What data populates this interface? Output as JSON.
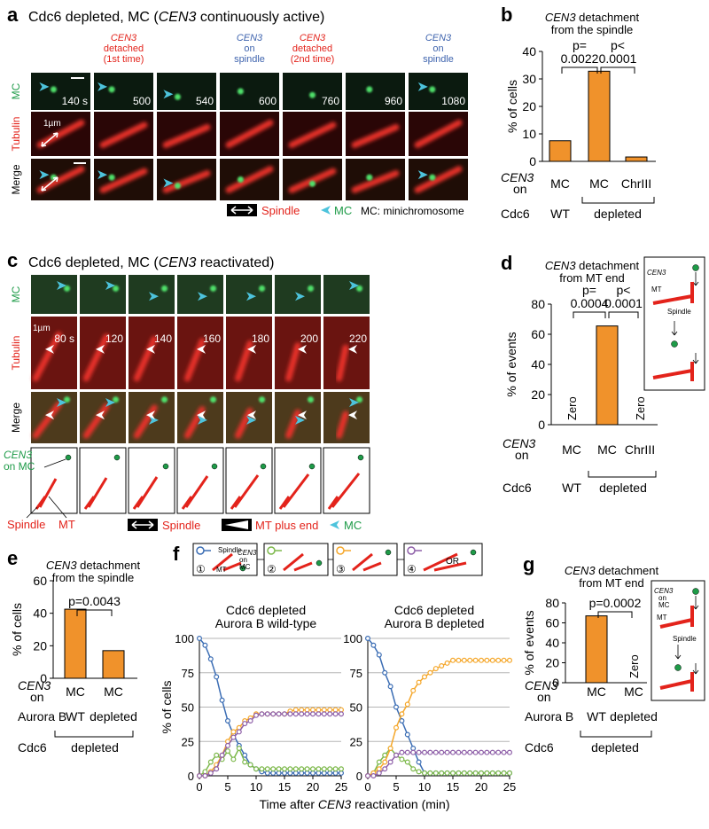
{
  "panel_a": {
    "letter": "a",
    "title": [
      "Cdc6 depleted, MC (",
      "CEN3",
      " continuously active)"
    ],
    "annotations": [
      {
        "lines": [
          "CEN3",
          "detached",
          "(1st time)"
        ],
        "color": "#e3231b"
      },
      {
        "lines": [
          "CEN3",
          "on",
          "spindle"
        ],
        "color": "#3f64ae"
      },
      {
        "lines": [
          "CEN3",
          "detached",
          "(2nd time)"
        ],
        "color": "#e3231b"
      },
      {
        "lines": [
          "CEN3",
          "on",
          "spindle"
        ],
        "color": "#3f64ae"
      }
    ],
    "rows": [
      "MC",
      "Tubulin",
      "Merge"
    ],
    "times": [
      "140 s",
      "500",
      "540",
      "600",
      "760",
      "960",
      "1080"
    ],
    "scale": "1µm",
    "legend": [
      "Spindle",
      "MC",
      "MC: minichromosome"
    ]
  },
  "panel_c": {
    "letter": "c",
    "title": [
      "Cdc6 depleted, MC (",
      "CEN3",
      " reactivated)"
    ],
    "rows": [
      "MC",
      "Tubulin",
      "Merge"
    ],
    "times": [
      "80 s",
      "120",
      "140",
      "160",
      "180",
      "200",
      "220"
    ],
    "scale": "1µm",
    "schematic_labels": [
      "CEN3",
      "on MC",
      "Spindle",
      "MT"
    ],
    "legend": [
      "Spindle",
      "MT plus end",
      "MC"
    ]
  },
  "panel_f": {
    "letter": "f",
    "schematic_labels": [
      "Spindle",
      "MT",
      "CEN3",
      "on",
      "MC",
      "OR"
    ],
    "xlabel": [
      "Time after ",
      "CEN3",
      " reactivation (min)"
    ]
  },
  "chart_data": [
    {
      "type": "bar",
      "letter": "b",
      "title": [
        "CEN3",
        " detachment",
        "from the spindle"
      ],
      "ylabel": "% of cells",
      "categories": [
        "MC",
        "MC",
        "ChrIII"
      ],
      "values": [
        7.5,
        32.8,
        1.6
      ],
      "color": "#f0922b",
      "ylim": [
        0,
        40
      ],
      "yticks": [
        0,
        10,
        20,
        30,
        40
      ],
      "pvalues": [
        [
          "p=",
          "0.0022"
        ],
        [
          "p<",
          "0.0001"
        ]
      ],
      "rows": [
        {
          "label": [
            "CEN3",
            "on"
          ]
        },
        {
          "label": [
            "Cdc6"
          ],
          "groups": [
            "WT",
            "depleted"
          ]
        }
      ]
    },
    {
      "type": "bar",
      "letter": "d",
      "title": [
        "CEN3",
        " detachment",
        "from MT end"
      ],
      "ylabel": "% of events",
      "categories": [
        "MC",
        "MC",
        "ChrIII"
      ],
      "values": [
        0,
        65.5,
        0
      ],
      "value_labels": [
        "Zero",
        null,
        "Zero"
      ],
      "color": "#f0922b",
      "ylim": [
        0,
        80
      ],
      "yticks": [
        0,
        20,
        40,
        60,
        80
      ],
      "pvalues": [
        [
          "p=",
          "0.0004"
        ],
        [
          "p<",
          "0.0001"
        ]
      ],
      "rows": [
        {
          "label": [
            "CEN3",
            "on"
          ]
        },
        {
          "label": [
            "Cdc6"
          ],
          "groups": [
            "WT",
            "depleted"
          ]
        }
      ],
      "inset_labels": [
        "CEN3",
        "MT",
        "Spindle"
      ]
    },
    {
      "type": "bar",
      "letter": "e",
      "title": [
        "CEN3",
        " detachment",
        "from the spindle"
      ],
      "ylabel": "% of cells",
      "categories": [
        "MC",
        "MC"
      ],
      "values": [
        42.5,
        17
      ],
      "color": "#f0922b",
      "ylim": [
        0,
        60
      ],
      "yticks": [
        0,
        20,
        40,
        60
      ],
      "pvalues": [
        [
          "p=0.0043"
        ]
      ],
      "rows": [
        {
          "label": [
            "CEN3",
            "on"
          ]
        },
        {
          "label": [
            "Aurora B"
          ],
          "groups": [
            "WT",
            "depleted"
          ]
        },
        {
          "label": [
            "Cdc6"
          ],
          "groups": [
            "depleted"
          ]
        }
      ]
    },
    {
      "type": "bar",
      "letter": "g",
      "title": [
        "CEN3",
        " detachment",
        "from MT end"
      ],
      "ylabel": "% of events",
      "categories": [
        "MC",
        "MC"
      ],
      "values": [
        67,
        0
      ],
      "value_labels": [
        null,
        "Zero"
      ],
      "color": "#f0922b",
      "ylim": [
        0,
        80
      ],
      "yticks": [
        0,
        20,
        40,
        60,
        80
      ],
      "pvalues": [
        [
          "p=0.0002"
        ]
      ],
      "rows": [
        {
          "label": [
            "CEN3",
            "on"
          ]
        },
        {
          "label": [
            "Aurora B"
          ],
          "groups": [
            "WT",
            "depleted"
          ]
        },
        {
          "label": [
            "Cdc6"
          ],
          "groups": [
            "depleted"
          ]
        }
      ],
      "inset_labels": [
        "CEN3",
        "on",
        "MC",
        "MT",
        "Spindle"
      ]
    },
    {
      "type": "line",
      "title": [
        "Cdc6 depleted",
        "Aurora B wild-type"
      ],
      "ylabel": "% of cells",
      "x": [
        0,
        1,
        2,
        3,
        4,
        5,
        6,
        7,
        8,
        9,
        10,
        11,
        12,
        13,
        14,
        15,
        16,
        17,
        18,
        19,
        20,
        21,
        22,
        23,
        24,
        25
      ],
      "xlim": [
        0,
        25
      ],
      "xticks": [
        0,
        5,
        10,
        15,
        20,
        25
      ],
      "ylim": [
        0,
        100
      ],
      "yticks": [
        0,
        25,
        50,
        75,
        100
      ],
      "grid": true,
      "series": [
        {
          "name": "①",
          "color": "#3b6db4",
          "values": [
            100,
            95,
            85,
            72,
            55,
            40,
            30,
            22,
            15,
            8,
            5,
            3,
            2,
            2,
            2,
            2,
            2,
            2,
            2,
            2,
            2,
            2,
            2,
            2,
            2,
            2
          ]
        },
        {
          "name": "②",
          "color": "#7cb84a",
          "values": [
            0,
            3,
            10,
            15,
            12,
            18,
            12,
            20,
            10,
            8,
            5,
            5,
            5,
            5,
            5,
            5,
            5,
            5,
            5,
            5,
            5,
            5,
            5,
            5,
            5,
            5
          ]
        },
        {
          "name": "③",
          "color": "#f5a72a",
          "values": [
            0,
            0,
            3,
            8,
            15,
            25,
            32,
            35,
            40,
            42,
            45,
            45,
            45,
            45,
            45,
            45,
            47,
            48,
            48,
            48,
            48,
            48,
            48,
            48,
            48,
            48
          ]
        },
        {
          "name": "④",
          "color": "#8e5fa8",
          "values": [
            0,
            0,
            2,
            5,
            15,
            22,
            28,
            32,
            38,
            40,
            44,
            45,
            45,
            45,
            45,
            45,
            45,
            45,
            45,
            45,
            45,
            45,
            45,
            45,
            45,
            45
          ]
        }
      ]
    },
    {
      "type": "line",
      "title": [
        "Cdc6 depleted",
        "Aurora B depleted"
      ],
      "x": [
        0,
        1,
        2,
        3,
        4,
        5,
        6,
        7,
        8,
        9,
        10,
        11,
        12,
        13,
        14,
        15,
        16,
        17,
        18,
        19,
        20,
        21,
        22,
        23,
        24,
        25
      ],
      "xlim": [
        0,
        25
      ],
      "xticks": [
        0,
        5,
        10,
        15,
        20,
        25
      ],
      "ylim": [
        0,
        100
      ],
      "yticks": [
        0,
        25,
        50,
        75,
        100
      ],
      "grid": true,
      "series": [
        {
          "color": "#3b6db4",
          "values": [
            100,
            95,
            88,
            75,
            65,
            50,
            40,
            30,
            20,
            10,
            2,
            2,
            2,
            2,
            2,
            2,
            2,
            2,
            2,
            2,
            2,
            2,
            2,
            2,
            2,
            2
          ]
        },
        {
          "color": "#7cb84a",
          "values": [
            0,
            2,
            10,
            15,
            20,
            15,
            12,
            10,
            5,
            3,
            2,
            2,
            2,
            2,
            2,
            2,
            2,
            2,
            2,
            2,
            2,
            2,
            2,
            2,
            2,
            2
          ]
        },
        {
          "color": "#f5a72a",
          "values": [
            0,
            2,
            5,
            10,
            20,
            35,
            45,
            52,
            62,
            68,
            72,
            75,
            78,
            80,
            82,
            84,
            84,
            84,
            84,
            84,
            84,
            84,
            84,
            84,
            84,
            84
          ]
        },
        {
          "color": "#8e5fa8",
          "values": [
            0,
            0,
            2,
            5,
            10,
            15,
            17,
            17,
            17,
            17,
            17,
            17,
            17,
            17,
            17,
            17,
            17,
            17,
            17,
            17,
            17,
            17,
            17,
            17,
            17,
            17
          ]
        }
      ]
    }
  ]
}
